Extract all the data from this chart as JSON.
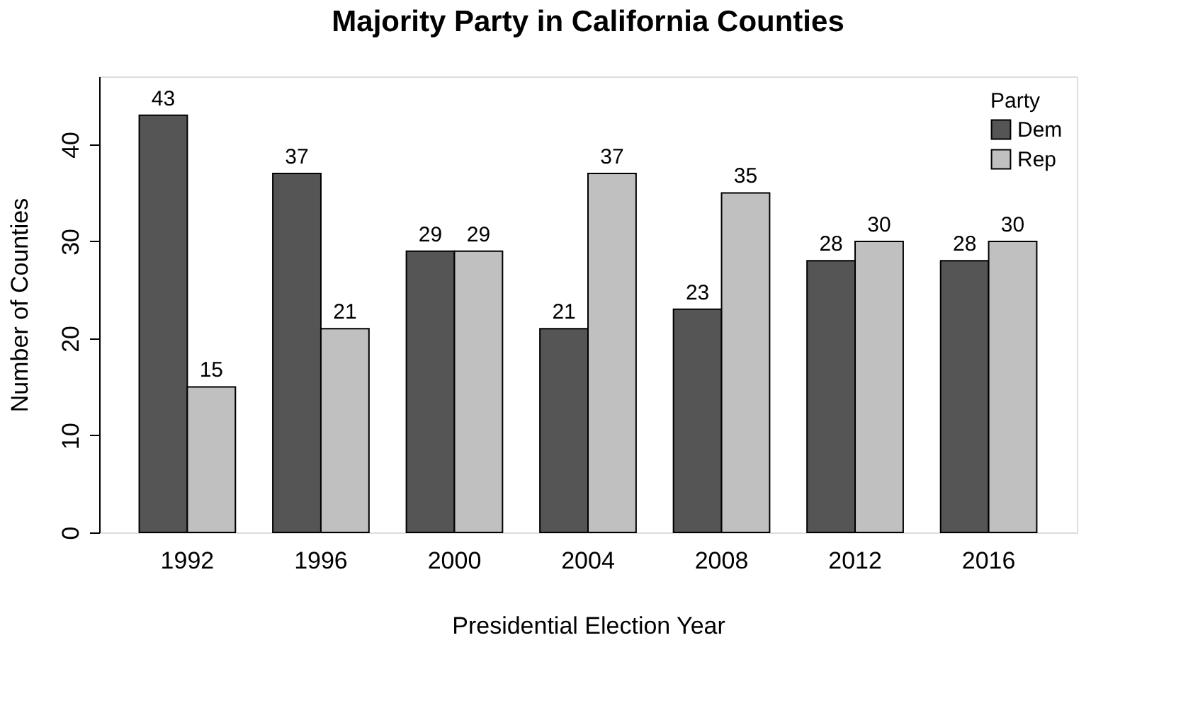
{
  "chart_data": {
    "type": "bar",
    "title": "Majority Party in California Counties",
    "xlabel": "Presidential Election Year",
    "ylabel": "Number of Counties",
    "legend_title": "Party",
    "categories": [
      "1992",
      "1996",
      "2000",
      "2004",
      "2008",
      "2012",
      "2016"
    ],
    "series": [
      {
        "name": "Dem",
        "color": "#555555",
        "values": [
          43,
          37,
          29,
          21,
          23,
          28,
          28
        ]
      },
      {
        "name": "Rep",
        "color": "#c0c0c0",
        "values": [
          15,
          21,
          29,
          37,
          35,
          30,
          30
        ]
      }
    ],
    "ylim": [
      0,
      47
    ],
    "yticks": [
      0,
      10,
      20,
      30,
      40
    ],
    "grid": false,
    "legend": "top right",
    "data_labels": true
  }
}
